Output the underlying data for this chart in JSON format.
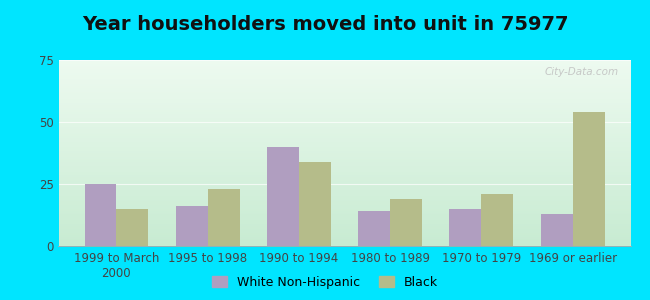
{
  "title": "Year householders moved into unit in 75977",
  "categories": [
    "1999 to March\n2000",
    "1995 to 1998",
    "1990 to 1994",
    "1980 to 1989",
    "1970 to 1979",
    "1969 or earlier"
  ],
  "white_values": [
    25,
    16,
    40,
    14,
    15,
    13
  ],
  "black_values": [
    15,
    23,
    34,
    19,
    21,
    54
  ],
  "white_color": "#b09ec0",
  "black_color": "#b5bc8a",
  "ylim": [
    0,
    75
  ],
  "yticks": [
    0,
    25,
    50,
    75
  ],
  "background_outer": "#00e5ff",
  "watermark": "City-Data.com",
  "bar_width": 0.35,
  "title_fontsize": 14,
  "tick_fontsize": 8.5,
  "legend_fontsize": 9
}
